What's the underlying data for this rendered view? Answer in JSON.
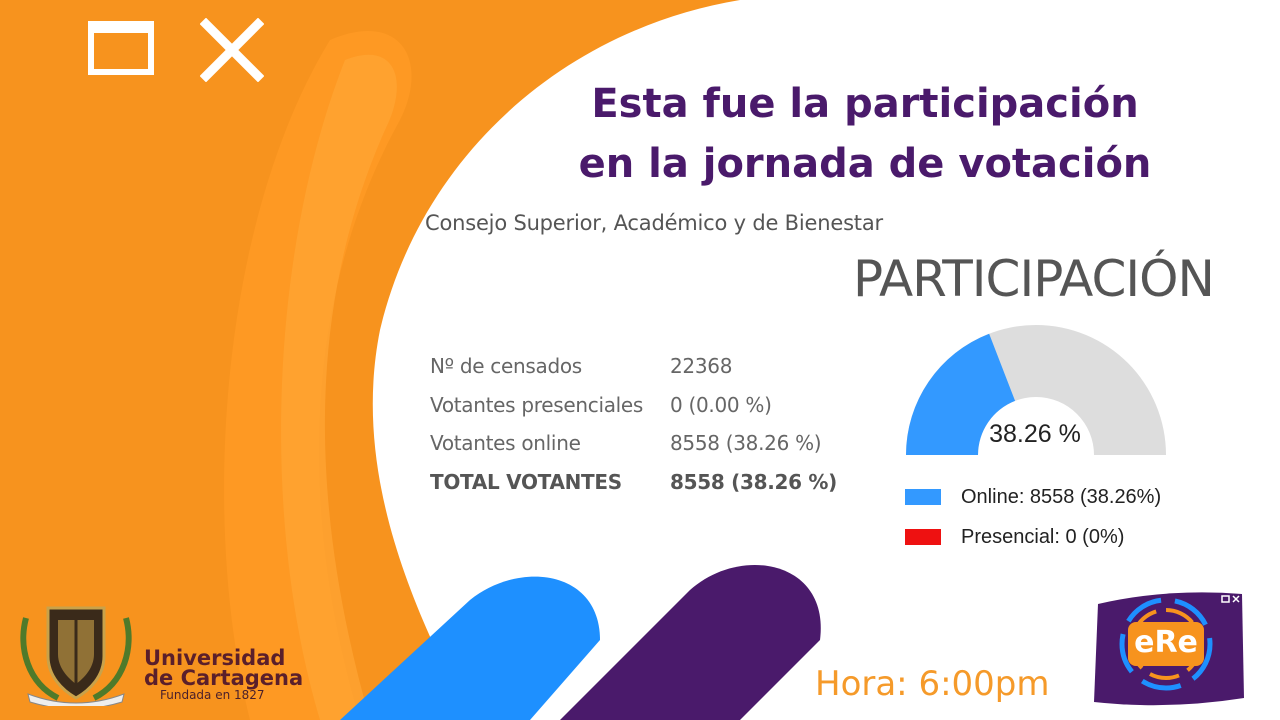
{
  "headline": {
    "line1": "Esta fue la participación",
    "line2": "en la jornada de votación"
  },
  "subtitle": "Consejo Superior, Académico y de Bienestar",
  "participation_title": "PARTICIPACIÓN",
  "stats": [
    {
      "label": "Nº de censados",
      "value": "22368"
    },
    {
      "label": "Votantes presenciales",
      "value": "0 (0.00 %)"
    },
    {
      "label": "Votantes online",
      "value": "8558 (38.26 %)"
    },
    {
      "label": "TOTAL VOTANTES",
      "value": "8558 (38.26 %)"
    }
  ],
  "chart_data": {
    "type": "pie",
    "variant": "half-donut gauge",
    "value_label": "38.26 %",
    "slices": [
      {
        "name": "Online",
        "value": 8558,
        "percent": 38.26,
        "color": "#3399ff"
      },
      {
        "name": "Presencial",
        "value": 0,
        "percent": 0,
        "color": "#ee1111"
      }
    ],
    "total": 22368,
    "remainder_color": "#dddddd",
    "legend": [
      {
        "label": "Online:  8558 (38.26%)",
        "color": "#3399ff"
      },
      {
        "label": "Presencial:  0 (0%)",
        "color": "#ee1111"
      }
    ],
    "legend_placement": "bottom"
  },
  "university": {
    "name_line1": "Universidad",
    "name_line2": "de Cartagena",
    "founded": "Fundada en 1827"
  },
  "time_label": "Hora: 6:00pm",
  "ere_logo": {
    "text": "eRe"
  },
  "colors": {
    "orange": "#f7931e",
    "purple": "#4a1a6b",
    "blue": "#1e90ff",
    "headline": "#4a1a6b"
  },
  "icons": [
    "maximize-icon",
    "close-icon",
    "university-crest-icon",
    "ere-logo-icon"
  ]
}
